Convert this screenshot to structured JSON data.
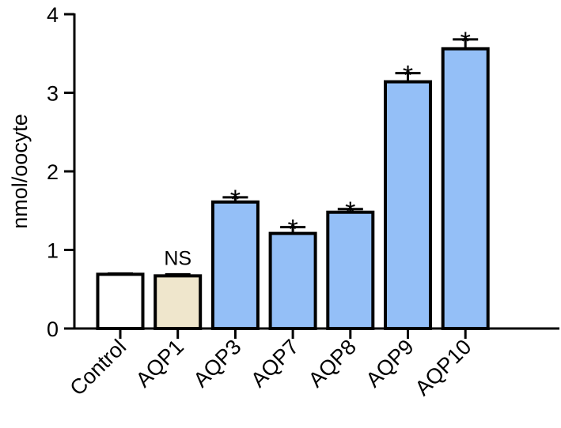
{
  "chart_data": {
    "type": "bar",
    "title": "",
    "xlabel": "",
    "ylabel": "nmol/oocyte",
    "ylim": [
      0,
      4
    ],
    "yticks": [
      0,
      1,
      2,
      3,
      4
    ],
    "grid": false,
    "categories": [
      "Control",
      "AQP1",
      "AQP3",
      "AQP7",
      "AQP8",
      "AQP9",
      "AQP10"
    ],
    "values": [
      0.69,
      0.67,
      1.61,
      1.21,
      1.48,
      3.14,
      3.56
    ],
    "errors": [
      0.01,
      0.02,
      0.06,
      0.08,
      0.04,
      0.11,
      0.12
    ],
    "annotations": [
      "",
      "NS",
      "*",
      "*",
      "*",
      "*",
      "*"
    ],
    "colors": [
      "#ffffff",
      "#efe6cc",
      "#94bff7",
      "#94bff7",
      "#94bff7",
      "#94bff7",
      "#94bff7"
    ]
  }
}
